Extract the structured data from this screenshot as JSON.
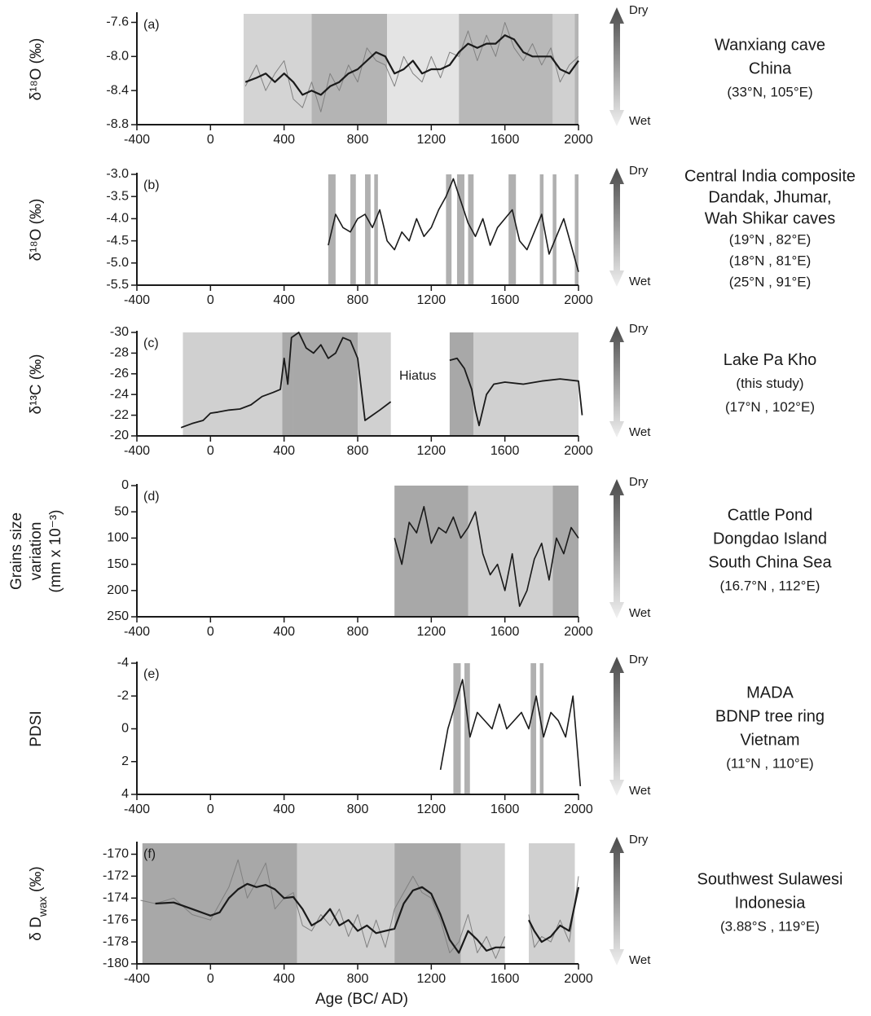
{
  "chart_data": [
    {
      "type": "line",
      "panel_label": "(a)",
      "ylabel_lines": [
        "δ¹⁸O (‰)"
      ],
      "site_lines": [
        "Wanxiang cave",
        "China",
        "(33°N, 105°E)"
      ],
      "dry_label": "Dry",
      "wet_label": "Wet",
      "xlim": [
        -400,
        2000
      ],
      "xticks": [
        -400,
        0,
        400,
        800,
        1200,
        1600,
        2000
      ],
      "ylim": [
        -8.8,
        -7.5
      ],
      "yticks": [
        -7.6,
        {
          "value": -8,
          "label": "-8.0"
        },
        -8.4,
        -8.8
      ],
      "bands": [
        {
          "range": [
            180,
            550
          ],
          "color": "#d4d4d4"
        },
        {
          "range": [
            550,
            960
          ],
          "color": "#b4b4b4"
        },
        {
          "range": [
            960,
            1350
          ],
          "color": "#e4e4e4"
        },
        {
          "range": [
            1350,
            1860
          ],
          "color": "#b8b8b8"
        },
        {
          "range": [
            1860,
            1980
          ],
          "color": "#d0d0d0"
        },
        {
          "range": [
            1980,
            2000
          ],
          "color": "#b4b4b4"
        }
      ],
      "x": [
        190,
        250,
        300,
        350,
        400,
        450,
        500,
        550,
        600,
        650,
        700,
        750,
        800,
        850,
        900,
        950,
        1000,
        1050,
        1100,
        1150,
        1200,
        1250,
        1300,
        1350,
        1400,
        1450,
        1500,
        1550,
        1600,
        1650,
        1700,
        1750,
        1800,
        1850,
        1900,
        1950,
        2000
      ],
      "series": [
        {
          "color": "#808080",
          "width": 1,
          "values": [
            -8.35,
            -8.1,
            -8.4,
            -8.2,
            -8.05,
            -8.5,
            -8.6,
            -8.3,
            -8.65,
            -8.2,
            -8.4,
            -8.1,
            -8.3,
            -7.9,
            -8.05,
            -8.1,
            -8.35,
            -8.0,
            -8.2,
            -8.3,
            -8.0,
            -8.25,
            -7.95,
            -8.0,
            -7.7,
            -8.05,
            -7.75,
            -8.0,
            -7.6,
            -7.9,
            -8.05,
            -7.85,
            -8.1,
            -7.9,
            -8.3,
            -8.1,
            -8.0
          ]
        },
        {
          "color": "#1a1a1a",
          "width": 2.2,
          "values": [
            -8.3,
            -8.25,
            -8.2,
            -8.3,
            -8.2,
            -8.3,
            -8.45,
            -8.4,
            -8.45,
            -8.35,
            -8.3,
            -8.2,
            -8.15,
            -8.05,
            -7.95,
            -8.0,
            -8.2,
            -8.15,
            -8.05,
            -8.2,
            -8.15,
            -8.15,
            -8.1,
            -7.95,
            -7.85,
            -7.9,
            -7.85,
            -7.85,
            -7.75,
            -7.8,
            -7.95,
            -8.0,
            -8.0,
            -8.0,
            -8.15,
            -8.2,
            -8.05
          ]
        }
      ]
    },
    {
      "type": "line",
      "panel_label": "(b)",
      "ylabel_lines": [
        "δ¹⁸O (‰)"
      ],
      "site_lines": [
        "Central India composite",
        "Dandak, Jhumar,",
        "Wah Shikar caves",
        "(19°N , 82°E)",
        "(18°N , 81°E)",
        "(25°N , 91°E)"
      ],
      "dry_label": "Dry",
      "wet_label": "Wet",
      "xlim": [
        -400,
        2000
      ],
      "xticks": [
        -400,
        0,
        400,
        800,
        1200,
        1600,
        2000
      ],
      "ylim": [
        -5.5,
        -3.0
      ],
      "yticks": [
        {
          "value": -3,
          "label": "-3.0"
        },
        -3.5,
        {
          "value": -4,
          "label": "-4.0"
        },
        -4.5,
        {
          "value": -5,
          "label": "-5.0"
        },
        -5.5
      ],
      "bands": [
        {
          "range": [
            640,
            680
          ],
          "color": "#b0b0b0"
        },
        {
          "range": [
            760,
            790
          ],
          "color": "#b0b0b0"
        },
        {
          "range": [
            840,
            870
          ],
          "color": "#b0b0b0"
        },
        {
          "range": [
            890,
            910
          ],
          "color": "#b0b0b0"
        },
        {
          "range": [
            1280,
            1310
          ],
          "color": "#b0b0b0"
        },
        {
          "range": [
            1340,
            1380
          ],
          "color": "#b0b0b0"
        },
        {
          "range": [
            1400,
            1430
          ],
          "color": "#b0b0b0"
        },
        {
          "range": [
            1620,
            1660
          ],
          "color": "#b0b0b0"
        },
        {
          "range": [
            1790,
            1810
          ],
          "color": "#b0b0b0"
        },
        {
          "range": [
            1860,
            1880
          ],
          "color": "#b0b0b0"
        },
        {
          "range": [
            1980,
            2000
          ],
          "color": "#b0b0b0"
        }
      ],
      "x": [
        640,
        680,
        720,
        760,
        800,
        840,
        880,
        920,
        960,
        1000,
        1040,
        1080,
        1120,
        1160,
        1200,
        1240,
        1280,
        1320,
        1360,
        1400,
        1440,
        1480,
        1520,
        1560,
        1600,
        1640,
        1680,
        1720,
        1760,
        1800,
        1840,
        1880,
        1920,
        1960,
        2000
      ],
      "series": [
        {
          "color": "#1a1a1a",
          "width": 1.6,
          "values": [
            -4.6,
            -3.9,
            -4.2,
            -4.3,
            -4.0,
            -3.9,
            -4.2,
            -3.8,
            -4.5,
            -4.7,
            -4.3,
            -4.5,
            -4.0,
            -4.4,
            -4.2,
            -3.8,
            -3.5,
            -3.1,
            -3.6,
            -4.1,
            -4.4,
            -4.0,
            -4.6,
            -4.2,
            -4.0,
            -3.8,
            -4.5,
            -4.7,
            -4.3,
            -3.9,
            -4.8,
            -4.4,
            -4.0,
            -4.6,
            -5.2
          ]
        }
      ]
    },
    {
      "type": "line",
      "panel_label": "(c)",
      "ylabel_lines": [
        "δ¹³C (‰)"
      ],
      "annotation": "Hiatus",
      "site_lines": [
        "Lake Pa Kho",
        "(this study)",
        "(17°N , 102°E)"
      ],
      "dry_label": "Dry",
      "wet_label": "Wet",
      "xlim": [
        -400,
        2000
      ],
      "xticks": [
        -400,
        0,
        400,
        800,
        1200,
        1600,
        2000
      ],
      "ylim": [
        -20,
        -30
      ],
      "yticks": [
        -30,
        -28,
        -26,
        -24,
        -22,
        -20
      ],
      "bands": [
        {
          "range": [
            -150,
            390
          ],
          "color": "#d0d0d0"
        },
        {
          "range": [
            390,
            450
          ],
          "color": "#a8a8a8"
        },
        {
          "range": [
            450,
            800
          ],
          "color": "#a8a8a8"
        },
        {
          "range": [
            800,
            980
          ],
          "color": "#d0d0d0"
        },
        {
          "range": [
            1300,
            1430
          ],
          "color": "#a8a8a8"
        },
        {
          "range": [
            1430,
            2000
          ],
          "color": "#d0d0d0"
        }
      ],
      "x": [
        -160,
        -100,
        -40,
        0,
        40,
        100,
        160,
        220,
        280,
        340,
        380,
        400,
        420,
        440,
        480,
        520,
        560,
        600,
        640,
        680,
        720,
        760,
        800,
        840,
        880,
        920,
        980,
        1100,
        1300,
        1340,
        1380,
        1420,
        1440,
        1460,
        1500,
        1540,
        1600,
        1700,
        1800,
        1900,
        2000,
        2020
      ],
      "series": [
        {
          "color": "#1a1a1a",
          "width": 1.8,
          "values": [
            -20.8,
            -21.2,
            -21.5,
            -22.2,
            -22.3,
            -22.5,
            -22.6,
            -23.0,
            -23.8,
            -24.2,
            -24.5,
            -27.5,
            -25.0,
            -29.5,
            -30,
            -28.5,
            -28,
            -28.8,
            -27.5,
            -28,
            -29.5,
            -29.2,
            -27.5,
            -21.5,
            -22.0,
            -22.5,
            -23.3,
            null,
            -27.3,
            -27.5,
            -26.5,
            -24.5,
            -22.5,
            -21.0,
            -24.0,
            -25.0,
            -25.2,
            -25.0,
            -25.3,
            -25.5,
            -25.3,
            -22.0
          ]
        }
      ]
    },
    {
      "type": "line",
      "panel_label": "(d)",
      "ylabel_lines": [
        "Grains size",
        "variation",
        "(mm x 10⁻³)"
      ],
      "site_lines": [
        "Cattle Pond",
        "Dongdao Island",
        "South China Sea",
        "(16.7°N , 112°E)"
      ],
      "dry_label": "Dry",
      "wet_label": "Wet",
      "xlim": [
        -400,
        2000
      ],
      "xticks": [
        -400,
        0,
        400,
        800,
        1200,
        1600,
        2000
      ],
      "ylim": [
        250,
        0
      ],
      "yticks": [
        0,
        50,
        100,
        150,
        200,
        250
      ],
      "bands": [
        {
          "range": [
            1000,
            1400
          ],
          "color": "#a8a8a8"
        },
        {
          "range": [
            1400,
            1860
          ],
          "color": "#d0d0d0"
        },
        {
          "range": [
            1860,
            2000
          ],
          "color": "#a8a8a8"
        }
      ],
      "x": [
        1000,
        1040,
        1080,
        1120,
        1160,
        1200,
        1240,
        1280,
        1320,
        1360,
        1400,
        1440,
        1480,
        1520,
        1560,
        1600,
        1640,
        1680,
        1720,
        1760,
        1800,
        1840,
        1880,
        1920,
        1960,
        2000
      ],
      "series": [
        {
          "color": "#1a1a1a",
          "width": 1.6,
          "values": [
            100,
            150,
            70,
            90,
            40,
            110,
            80,
            90,
            60,
            100,
            80,
            50,
            130,
            170,
            150,
            200,
            130,
            230,
            200,
            140,
            110,
            180,
            100,
            130,
            80,
            100
          ]
        }
      ]
    },
    {
      "type": "line",
      "panel_label": "(e)",
      "ylabel_lines": [
        "PDSI"
      ],
      "site_lines": [
        "MADA",
        "BDNP tree ring",
        "Vietnam",
        "(11°N , 110°E)"
      ],
      "dry_label": "Dry",
      "wet_label": "Wet",
      "xlim": [
        -400,
        2000
      ],
      "xticks": [
        -400,
        0,
        400,
        800,
        1200,
        1600,
        2000
      ],
      "ylim": [
        4,
        -4
      ],
      "yticks": [
        -4,
        -2,
        0,
        2,
        4
      ],
      "bands": [
        {
          "range": [
            1320,
            1360
          ],
          "color": "#b0b0b0"
        },
        {
          "range": [
            1380,
            1410
          ],
          "color": "#b0b0b0"
        },
        {
          "range": [
            1740,
            1770
          ],
          "color": "#b0b0b0"
        },
        {
          "range": [
            1790,
            1810
          ],
          "color": "#b0b0b0"
        }
      ],
      "x": [
        1250,
        1290,
        1330,
        1370,
        1410,
        1450,
        1490,
        1530,
        1570,
        1610,
        1650,
        1690,
        1730,
        1770,
        1810,
        1850,
        1890,
        1930,
        1970,
        2010
      ],
      "series": [
        {
          "color": "#1a1a1a",
          "width": 1.6,
          "values": [
            2.5,
            0,
            -1.5,
            -3,
            0.5,
            -1,
            -0.5,
            0,
            -1.5,
            0,
            -0.5,
            -1,
            0,
            -2,
            0.5,
            -1,
            -0.5,
            0.5,
            -2,
            3.5
          ]
        }
      ]
    },
    {
      "type": "line",
      "panel_label": "(f)",
      "ylabel_parts": [
        {
          "text": "δ D"
        },
        {
          "text": "wax",
          "sub": true
        },
        {
          "text": " (‰)"
        }
      ],
      "site_lines": [
        "Southwest Sulawesi",
        "Indonesia",
        "(3.88°S , 119°E)"
      ],
      "dry_label": "Dry",
      "wet_label": "Wet",
      "xlabel": "Age (BC/ AD)",
      "xlim": [
        -400,
        2000
      ],
      "xticks": [
        -400,
        0,
        400,
        800,
        1200,
        1600,
        2000
      ],
      "ylim": [
        -180,
        -169
      ],
      "yticks": [
        -170,
        -172,
        -174,
        -176,
        -178,
        -180
      ],
      "bands": [
        {
          "range": [
            -370,
            470
          ],
          "color": "#a8a8a8"
        },
        {
          "range": [
            470,
            1000
          ],
          "color": "#d0d0d0"
        },
        {
          "range": [
            1000,
            1360
          ],
          "color": "#a8a8a8"
        },
        {
          "range": [
            1360,
            1600
          ],
          "color": "#d0d0d0"
        },
        {
          "range": [
            1730,
            1980
          ],
          "color": "#d0d0d0"
        }
      ],
      "x": [
        -380,
        -300,
        -200,
        -100,
        0,
        50,
        100,
        150,
        200,
        250,
        300,
        350,
        400,
        450,
        500,
        550,
        600,
        650,
        700,
        750,
        800,
        850,
        900,
        950,
        1000,
        1050,
        1100,
        1150,
        1200,
        1250,
        1300,
        1350,
        1400,
        1450,
        1500,
        1550,
        1600,
        1650,
        1730,
        1760,
        1800,
        1850,
        1900,
        1950,
        2000
      ],
      "series": [
        {
          "color": "#808080",
          "width": 1,
          "values": [
            -174.2,
            -174.5,
            -174,
            -175.5,
            -176,
            -174.5,
            -173,
            -170.5,
            -174,
            -172.5,
            -170.8,
            -175,
            -174,
            -173.5,
            -176.5,
            -177,
            -175.5,
            -176.5,
            -175,
            -177.5,
            -175.5,
            -178.5,
            -176,
            -178.5,
            -175,
            -173.5,
            -172,
            -173.5,
            -174,
            -176,
            -179,
            -178,
            -175.5,
            -179,
            -177.5,
            -179.5,
            -177.5,
            null,
            -175.5,
            -178.5,
            -177.5,
            -178,
            -176,
            -178,
            -172
          ]
        },
        {
          "color": "#1a1a1a",
          "width": 2.2,
          "values": [
            null,
            -174.5,
            -174.4,
            -175,
            -175.6,
            -175.3,
            -174,
            -173.2,
            -172.7,
            -173,
            -172.8,
            -173.2,
            -174,
            -173.9,
            -175,
            -176.5,
            -176,
            -175,
            -176.5,
            -176,
            -177,
            -176.5,
            -177.2,
            -177,
            -176.8,
            -174.5,
            -173.3,
            -173,
            -173.6,
            -175.5,
            -177.8,
            -179,
            -177,
            -177.8,
            -178.8,
            -178.5,
            -178.5,
            null,
            -176,
            -177,
            -178,
            -177.5,
            -176.5,
            -177,
            -173
          ]
        }
      ]
    }
  ]
}
